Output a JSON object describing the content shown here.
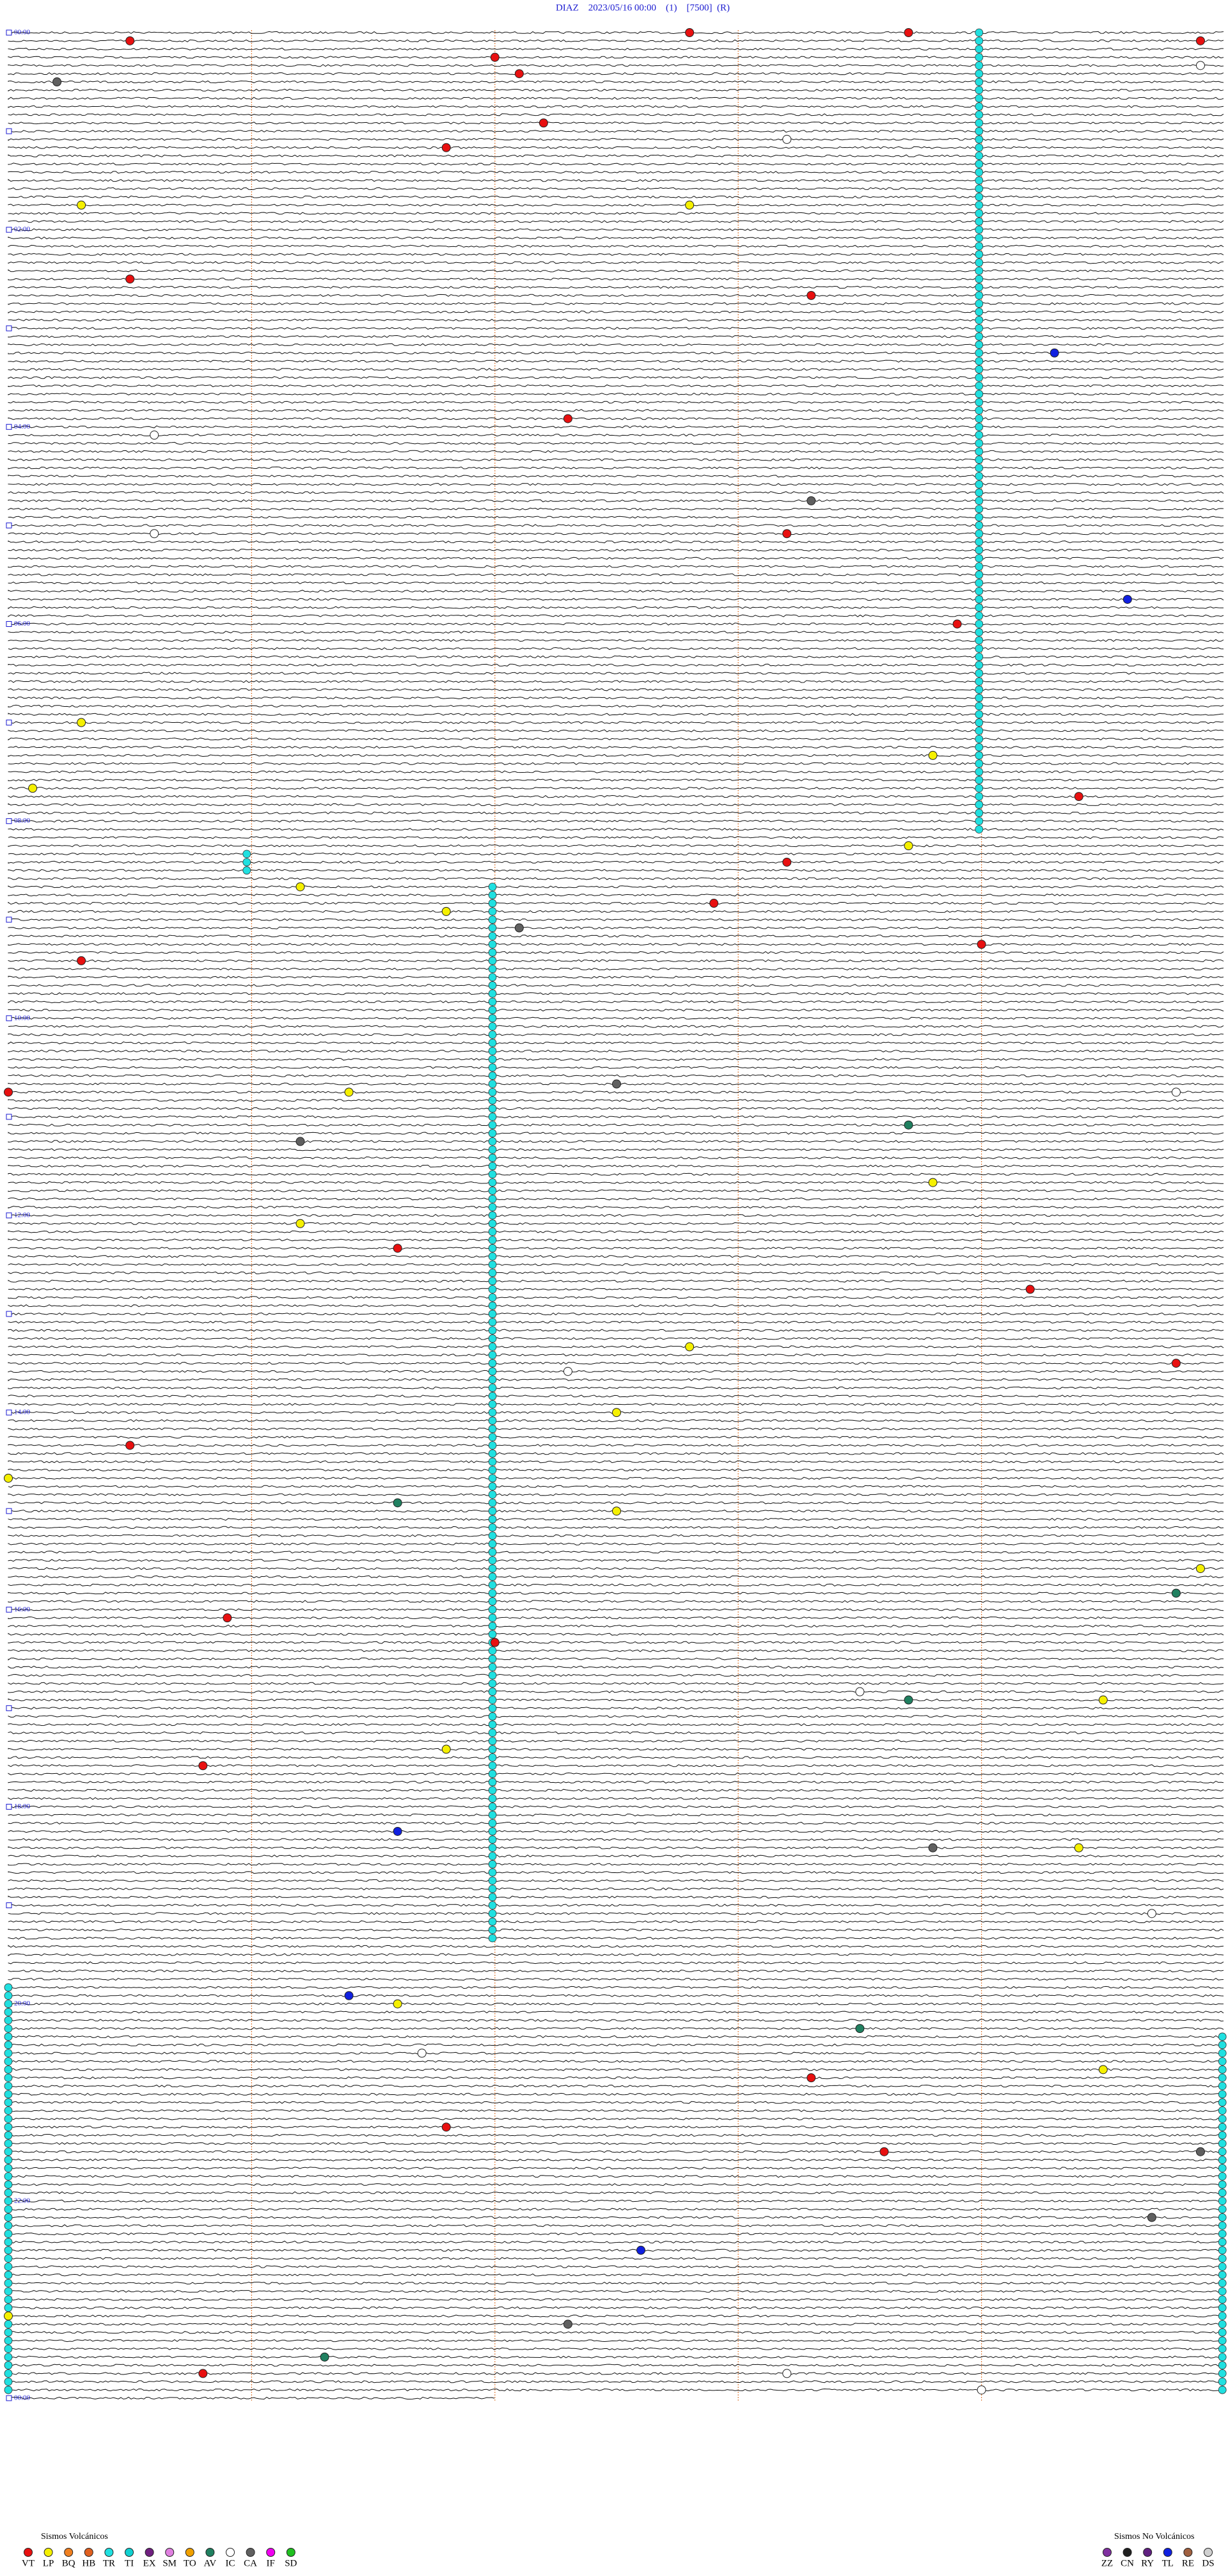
{
  "chart_data": {
    "type": "helicorder",
    "title": "DIAZ    2023/05/16 00:00    (1)    [7500]  (R)",
    "minutes_per_line": 5,
    "hour_labels": [
      "00:00",
      "02:00",
      "04:00",
      "06:00",
      "08:00",
      "10:00",
      "12:00",
      "14:00",
      "16:00",
      "18:00",
      "20:00",
      "22:00",
      "00:00"
    ],
    "legend_volcanic_title": "Sismos Volcánicos",
    "legend_volcanic": [
      {
        "code": "VT",
        "color": "#e81010"
      },
      {
        "code": "LP",
        "color": "#f5f000"
      },
      {
        "code": "BQ",
        "color": "#f08020"
      },
      {
        "code": "HB",
        "color": "#e06020"
      },
      {
        "code": "TR",
        "color": "#20e0e0"
      },
      {
        "code": "TI",
        "color": "#10d0d0"
      },
      {
        "code": "EX",
        "color": "#702080"
      },
      {
        "code": "SM",
        "color": "#e080e0"
      },
      {
        "code": "TO",
        "color": "#f0a000"
      },
      {
        "code": "AV",
        "color": "#208060"
      },
      {
        "code": "IC",
        "color": "#ffffff"
      },
      {
        "code": "CA",
        "color": "#606060"
      },
      {
        "code": "IF",
        "color": "#f000f0"
      },
      {
        "code": "SD",
        "color": "#20c020"
      }
    ],
    "legend_nonvolcanic_title": "Sismos No Volcánicos",
    "legend_nonvolcanic": [
      {
        "code": "ZZ",
        "color": "#8030a0"
      },
      {
        "code": "CN",
        "color": "#202020"
      },
      {
        "code": "RY",
        "color": "#602080"
      },
      {
        "code": "TL",
        "color": "#1020e0"
      },
      {
        "code": "RE",
        "color": "#a06040"
      },
      {
        "code": "DS",
        "color": "#d0d0d0"
      }
    ],
    "tremor": [
      {
        "type": "TR",
        "offset_min": 3.99,
        "start": 0,
        "end": 485
      },
      {
        "type": "TR",
        "offset_min": 1.99,
        "start": 520,
        "end": 1160
      },
      {
        "type": "TR",
        "offset_min": 0.98,
        "start": 500,
        "end": 510
      },
      {
        "type": "TR",
        "offset_min": 4.99,
        "start": 1220,
        "end": 1436
      },
      {
        "type": "TR",
        "offset_min": 0.0,
        "start": 1190,
        "end": 1436
      }
    ],
    "events": [
      {
        "t": 2.8,
        "type": "VT"
      },
      {
        "t": 3.7,
        "type": "VT"
      },
      {
        "t": 9.9,
        "type": "VT"
      },
      {
        "t": 5.5,
        "type": "VT"
      },
      {
        "t": 17.0,
        "type": "VT"
      },
      {
        "t": 30.2,
        "type": "CA"
      },
      {
        "t": 27.1,
        "type": "VT"
      },
      {
        "t": 57.2,
        "type": "VT"
      },
      {
        "t": 71.8,
        "type": "VT"
      },
      {
        "t": 105.3,
        "type": "LP"
      },
      {
        "t": 107.8,
        "type": "LP"
      },
      {
        "t": 150.5,
        "type": "VT"
      },
      {
        "t": 163.3,
        "type": "VT"
      },
      {
        "t": 199.3,
        "type": "TL"
      },
      {
        "t": 237.3,
        "type": "VT"
      },
      {
        "t": 288.3,
        "type": "CA"
      },
      {
        "t": 308.2,
        "type": "VT"
      },
      {
        "t": 349.6,
        "type": "TL"
      },
      {
        "t": 363.9,
        "type": "VT"
      },
      {
        "t": 420.3,
        "type": "LP"
      },
      {
        "t": 443.8,
        "type": "LP"
      },
      {
        "t": 460.1,
        "type": "LP"
      },
      {
        "t": 469.4,
        "type": "VT"
      },
      {
        "t": 498.7,
        "type": "LP"
      },
      {
        "t": 508.2,
        "type": "VT"
      },
      {
        "t": 521.2,
        "type": "LP"
      },
      {
        "t": 536.8,
        "type": "LP"
      },
      {
        "t": 532.9,
        "type": "VT"
      },
      {
        "t": 547.1,
        "type": "CA"
      },
      {
        "t": 559.0,
        "type": "VT"
      },
      {
        "t": 565.3,
        "type": "VT"
      },
      {
        "t": 645.0,
        "type": "VT"
      },
      {
        "t": 642.5,
        "type": "CA"
      },
      {
        "t": 646.4,
        "type": "LP"
      },
      {
        "t": 676.2,
        "type": "CA"
      },
      {
        "t": 668.7,
        "type": "AV"
      },
      {
        "t": 703.8,
        "type": "LP"
      },
      {
        "t": 726.2,
        "type": "LP"
      },
      {
        "t": 741.6,
        "type": "VT"
      },
      {
        "t": 769.2,
        "type": "VT"
      },
      {
        "t": 814.8,
        "type": "VT"
      },
      {
        "t": 802.8,
        "type": "LP"
      },
      {
        "t": 842.5,
        "type": "LP"
      },
      {
        "t": 860.5,
        "type": "VT"
      },
      {
        "t": 880.0,
        "type": "LP"
      },
      {
        "t": 896.6,
        "type": "AV"
      },
      {
        "t": 902.5,
        "type": "LP"
      },
      {
        "t": 939.9,
        "type": "LP"
      },
      {
        "t": 982.0,
        "type": "VT"
      },
      {
        "t": 954.8,
        "type": "AV"
      },
      {
        "t": 965.9,
        "type": "VT"
      },
      {
        "t": 1018.7,
        "type": "AV"
      },
      {
        "t": 1019.5,
        "type": "LP"
      },
      {
        "t": 1046.8,
        "type": "LP"
      },
      {
        "t": 1055.8,
        "type": "VT"
      },
      {
        "t": 1096.6,
        "type": "TL"
      },
      {
        "t": 1108.8,
        "type": "CA"
      },
      {
        "t": 1109.4,
        "type": "LP"
      },
      {
        "t": 1196.4,
        "type": "TL"
      },
      {
        "t": 1201.6,
        "type": "LP"
      },
      {
        "t": 1218.5,
        "type": "AV"
      },
      {
        "t": 1244.5,
        "type": "LP"
      },
      {
        "t": 1248.3,
        "type": "VT"
      },
      {
        "t": 1276.8,
        "type": "VT"
      },
      {
        "t": 1294.9,
        "type": "CA"
      },
      {
        "t": 1293.6,
        "type": "VT"
      },
      {
        "t": 1334.7,
        "type": "CA"
      },
      {
        "t": 1352.6,
        "type": "TL"
      },
      {
        "t": 1390.0,
        "type": "LP"
      },
      {
        "t": 1397.3,
        "type": "CA"
      },
      {
        "t": 1425.8,
        "type": "VT"
      },
      {
        "t": 1416.3,
        "type": "AV"
      },
      {
        "t": 1428.2,
        "type": "IC"
      },
      {
        "t": 1439.0,
        "type": "IC"
      },
      {
        "t": 24.9,
        "type": "IC"
      },
      {
        "t": 68.2,
        "type": "IC"
      },
      {
        "t": 245.6,
        "type": "IC"
      },
      {
        "t": 305.6,
        "type": "IC"
      },
      {
        "t": 649.8,
        "type": "IC"
      },
      {
        "t": 817.3,
        "type": "IC"
      },
      {
        "t": 1013.5,
        "type": "IC"
      },
      {
        "t": 1231.7,
        "type": "IC"
      },
      {
        "t": 1149.7,
        "type": "IC"
      }
    ]
  }
}
